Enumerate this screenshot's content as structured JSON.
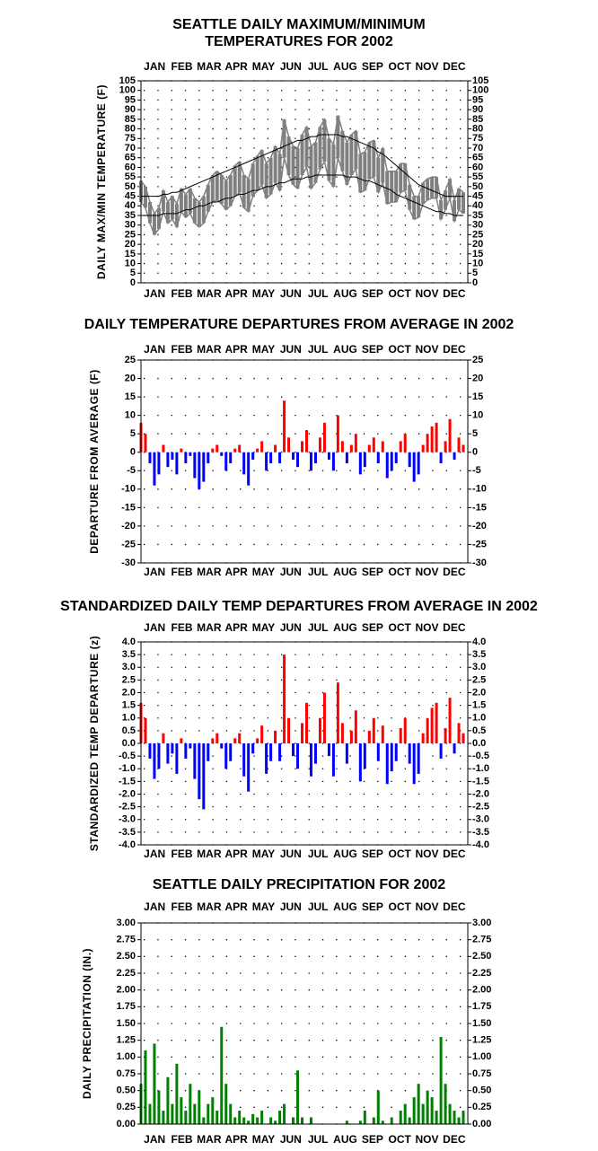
{
  "chart_data": [
    {
      "type": "range_line",
      "title": [
        "SEATTLE DAILY MAXIMUM/MINIMUM",
        "TEMPERATURES FOR 2002"
      ],
      "y_label": "DAILY MAX/MIN TEMPERATURE (F)",
      "months": [
        "JAN",
        "FEB",
        "MAR",
        "APR",
        "MAY",
        "JUN",
        "JUL",
        "AUG",
        "SEP",
        "OCT",
        "NOV",
        "DEC"
      ],
      "xlim": [
        1,
        366
      ],
      "x": [
        1,
        6,
        11,
        16,
        21,
        26,
        31,
        36,
        41,
        46,
        51,
        56,
        61,
        66,
        71,
        76,
        81,
        86,
        91,
        96,
        101,
        106,
        111,
        116,
        121,
        126,
        131,
        136,
        141,
        146,
        151,
        156,
        161,
        166,
        171,
        176,
        181,
        186,
        191,
        196,
        201,
        206,
        211,
        216,
        221,
        226,
        231,
        236,
        241,
        246,
        251,
        256,
        261,
        266,
        271,
        276,
        281,
        286,
        291,
        296,
        301,
        306,
        311,
        316,
        321,
        326,
        331,
        336,
        341,
        346,
        351,
        356,
        361
      ],
      "ylim": [
        0,
        105
      ],
      "yticks": [
        0,
        5,
        10,
        15,
        20,
        25,
        30,
        35,
        40,
        45,
        50,
        55,
        60,
        65,
        70,
        75,
        80,
        85,
        90,
        95,
        100,
        105
      ],
      "grid": true,
      "series": [
        {
          "name": "Daily maximum",
          "color": "#808080",
          "values": [
            53,
            50,
            42,
            36,
            39,
            48,
            42,
            45,
            41,
            49,
            46,
            49,
            44,
            42,
            45,
            51,
            56,
            58,
            56,
            53,
            56,
            61,
            63,
            56,
            54,
            62,
            66,
            69,
            62,
            65,
            71,
            67,
            85,
            76,
            71,
            70,
            77,
            81,
            71,
            73,
            81,
            85,
            75,
            72,
            87,
            79,
            73,
            77,
            79,
            67,
            68,
            73,
            74,
            65,
            70,
            58,
            58,
            58,
            62,
            62,
            51,
            45,
            45,
            52,
            54,
            55,
            55,
            43,
            48,
            54,
            43,
            49,
            47
          ]
        },
        {
          "name": "Daily minimum",
          "color": "#808080",
          "values": [
            42,
            39,
            31,
            25,
            28,
            37,
            31,
            33,
            29,
            37,
            34,
            36,
            31,
            29,
            31,
            37,
            42,
            43,
            41,
            38,
            40,
            45,
            47,
            39,
            37,
            45,
            48,
            51,
            44,
            46,
            52,
            48,
            65,
            56,
            51,
            49,
            56,
            60,
            49,
            52,
            59,
            63,
            53,
            50,
            65,
            58,
            51,
            56,
            59,
            47,
            48,
            54,
            55,
            47,
            52,
            41,
            42,
            42,
            47,
            48,
            38,
            33,
            34,
            41,
            43,
            44,
            44,
            33,
            38,
            44,
            32,
            38,
            36
          ]
        },
        {
          "name": "Average maximum",
          "color": "#000000",
          "values": [
            45,
            45,
            45,
            45,
            45,
            46,
            46,
            47,
            47,
            48,
            49,
            50,
            51,
            52,
            53,
            54,
            55,
            56,
            57,
            58,
            59,
            60,
            61,
            62,
            63,
            64,
            65,
            66,
            67,
            68,
            69,
            70,
            71,
            72,
            73,
            74,
            74,
            75,
            76,
            76,
            77,
            77,
            77,
            77,
            77,
            76,
            76,
            75,
            74,
            73,
            72,
            71,
            70,
            68,
            67,
            65,
            63,
            61,
            59,
            57,
            55,
            53,
            51,
            50,
            49,
            48,
            47,
            46,
            45,
            45,
            45,
            45,
            45
          ]
        },
        {
          "name": "Average minimum",
          "color": "#000000",
          "values": [
            35,
            35,
            35,
            35,
            35,
            36,
            36,
            36,
            36,
            37,
            38,
            38,
            39,
            40,
            40,
            41,
            42,
            42,
            43,
            44,
            44,
            45,
            46,
            46,
            47,
            48,
            48,
            49,
            50,
            50,
            51,
            52,
            52,
            53,
            54,
            54,
            54,
            55,
            55,
            56,
            56,
            56,
            56,
            56,
            56,
            56,
            55,
            55,
            55,
            54,
            53,
            53,
            52,
            51,
            50,
            49,
            48,
            46,
            45,
            44,
            43,
            42,
            41,
            40,
            39,
            38,
            37,
            37,
            36,
            36,
            35,
            35,
            35
          ]
        }
      ]
    },
    {
      "type": "bar",
      "title": [
        "DAILY TEMPERATURE DEPARTURES FROM AVERAGE IN 2002"
      ],
      "y_label": "DEPARTURE FROM AVERAGE (F)",
      "months": [
        "JAN",
        "FEB",
        "MAR",
        "APR",
        "MAY",
        "JUN",
        "JUL",
        "AUG",
        "SEP",
        "OCT",
        "NOV",
        "DEC"
      ],
      "xlim": [
        1,
        366
      ],
      "x": [
        1,
        6,
        11,
        16,
        21,
        26,
        31,
        36,
        41,
        46,
        51,
        56,
        61,
        66,
        71,
        76,
        81,
        86,
        91,
        96,
        101,
        106,
        111,
        116,
        121,
        126,
        131,
        136,
        141,
        146,
        151,
        156,
        161,
        166,
        171,
        176,
        181,
        186,
        191,
        196,
        201,
        206,
        211,
        216,
        221,
        226,
        231,
        236,
        241,
        246,
        251,
        256,
        261,
        266,
        271,
        276,
        281,
        286,
        291,
        296,
        301,
        306,
        311,
        316,
        321,
        326,
        331,
        336,
        341,
        346,
        351,
        356,
        361
      ],
      "ylim": [
        -30,
        25
      ],
      "yticks": [
        -30,
        -25,
        -20,
        -15,
        -10,
        -5,
        0,
        5,
        10,
        15,
        20,
        25
      ],
      "grid": true,
      "pos_color": "#ff0000",
      "neg_color": "#0000ff",
      "values": [
        8,
        5,
        -3,
        -9,
        -6,
        2,
        -4,
        -2,
        -6,
        1,
        -3,
        -1,
        -7,
        -10,
        -8,
        -3,
        1,
        2,
        -1,
        -5,
        -3,
        1,
        2,
        -6,
        -9,
        -2,
        1,
        3,
        -5,
        -3,
        2,
        -3,
        14,
        4,
        -2,
        -4,
        3,
        6,
        -5,
        -3,
        4,
        8,
        -2,
        -5,
        10,
        3,
        -3,
        2,
        5,
        -6,
        -4,
        2,
        4,
        -3,
        3,
        -7,
        -5,
        -3,
        3,
        5,
        -4,
        -8,
        -6,
        2,
        5,
        7,
        8,
        -3,
        3,
        9,
        -2,
        4,
        2
      ]
    },
    {
      "type": "bar",
      "title": [
        "STANDARDIZED DAILY TEMP DEPARTURES FROM AVERAGE IN 2002"
      ],
      "y_label": "STANDARDIZED TEMP DEPARTURE (z)",
      "months": [
        "JAN",
        "FEB",
        "MAR",
        "APR",
        "MAY",
        "JUN",
        "JUL",
        "AUG",
        "SEP",
        "OCT",
        "NOV",
        "DEC"
      ],
      "xlim": [
        1,
        366
      ],
      "x": [
        1,
        6,
        11,
        16,
        21,
        26,
        31,
        36,
        41,
        46,
        51,
        56,
        61,
        66,
        71,
        76,
        81,
        86,
        91,
        96,
        101,
        106,
        111,
        116,
        121,
        126,
        131,
        136,
        141,
        146,
        151,
        156,
        161,
        166,
        171,
        176,
        181,
        186,
        191,
        196,
        201,
        206,
        211,
        216,
        221,
        226,
        231,
        236,
        241,
        246,
        251,
        256,
        261,
        266,
        271,
        276,
        281,
        286,
        291,
        296,
        301,
        306,
        311,
        316,
        321,
        326,
        331,
        336,
        341,
        346,
        351,
        356,
        361
      ],
      "ylim": [
        -4,
        4
      ],
      "yticks": [
        {
          "value": -4,
          "label": "-4.0"
        },
        -3.5,
        {
          "value": -3,
          "label": "-3.0"
        },
        -2.5,
        {
          "value": -2,
          "label": "-2.0"
        },
        -1.5,
        {
          "value": -1,
          "label": "-1.0"
        },
        -0.5,
        {
          "value": 0,
          "label": "0.0"
        },
        0.5,
        {
          "value": 1,
          "label": "1.0"
        },
        1.5,
        {
          "value": 2,
          "label": "2.0"
        },
        2.5,
        {
          "value": 3,
          "label": "3.0"
        },
        3.5,
        {
          "value": 4,
          "label": "4.0"
        }
      ],
      "grid": true,
      "pos_color": "#ff0000",
      "neg_color": "#0000ff",
      "values": [
        1.6,
        1.0,
        -0.6,
        -1.4,
        -1.0,
        0.4,
        -0.8,
        -0.4,
        -1.2,
        0.2,
        -0.6,
        -0.2,
        -1.4,
        -2.2,
        -2.6,
        -0.7,
        0.2,
        0.4,
        -0.2,
        -1.0,
        -0.7,
        0.2,
        0.4,
        -1.3,
        -1.9,
        -0.4,
        0.2,
        0.7,
        -1.2,
        -0.7,
        0.5,
        -0.7,
        3.5,
        1.0,
        -0.5,
        -1.0,
        0.8,
        1.6,
        -1.3,
        -0.8,
        1.0,
        2.0,
        -0.5,
        -1.3,
        2.4,
        0.8,
        -0.8,
        0.5,
        1.3,
        -1.5,
        -1.0,
        0.5,
        1.0,
        -0.7,
        0.7,
        -1.6,
        -1.1,
        -0.7,
        0.6,
        1.0,
        -0.8,
        -1.6,
        -1.2,
        0.4,
        1.0,
        1.4,
        1.6,
        -0.6,
        0.6,
        1.8,
        -0.4,
        0.8,
        0.4
      ]
    },
    {
      "type": "bar",
      "title": [
        "SEATTLE DAILY PRECIPITATION FOR 2002"
      ],
      "y_label": "DAILY PRECIPITATION (IN.)",
      "months": [
        "JAN",
        "FEB",
        "MAR",
        "APR",
        "MAY",
        "JUN",
        "JUL",
        "AUG",
        "SEP",
        "OCT",
        "NOV",
        "DEC"
      ],
      "xlim": [
        1,
        366
      ],
      "x": [
        1,
        6,
        11,
        16,
        21,
        26,
        31,
        36,
        41,
        46,
        51,
        56,
        61,
        66,
        71,
        76,
        81,
        86,
        91,
        96,
        101,
        106,
        111,
        116,
        121,
        126,
        131,
        136,
        141,
        146,
        151,
        156,
        161,
        166,
        171,
        176,
        181,
        186,
        191,
        196,
        201,
        206,
        211,
        216,
        221,
        226,
        231,
        236,
        241,
        246,
        251,
        256,
        261,
        266,
        271,
        276,
        281,
        286,
        291,
        296,
        301,
        306,
        311,
        316,
        321,
        326,
        331,
        336,
        341,
        346,
        351,
        356,
        361
      ],
      "ylim": [
        0,
        3
      ],
      "yticks": [
        {
          "value": 0,
          "label": "0.00"
        },
        0.25,
        {
          "value": 0.5,
          "label": "0.50"
        },
        0.75,
        {
          "value": 1,
          "label": "1.00"
        },
        1.25,
        {
          "value": 1.5,
          "label": "1.50"
        },
        1.75,
        {
          "value": 2,
          "label": "2.00"
        },
        2.25,
        {
          "value": 2.5,
          "label": "2.50"
        },
        2.75,
        {
          "value": 3,
          "label": "3.00"
        }
      ],
      "grid": true,
      "color": "#008000",
      "values": [
        0.6,
        1.1,
        0.3,
        1.2,
        0.5,
        0.2,
        0.7,
        0.3,
        0.9,
        0.4,
        0.2,
        0.6,
        0.3,
        0.5,
        0.1,
        0.3,
        0.4,
        0.2,
        1.45,
        0.6,
        0.3,
        0.1,
        0.2,
        0.1,
        0.05,
        0.15,
        0.1,
        0.2,
        0,
        0.1,
        0.05,
        0.2,
        0.3,
        0,
        0.1,
        0.8,
        0.1,
        0,
        0.1,
        0,
        0,
        0,
        0,
        0,
        0,
        0,
        0.05,
        0,
        0,
        0.05,
        0.2,
        0,
        0.1,
        0.5,
        0.05,
        0,
        0.1,
        0,
        0.2,
        0.3,
        0.1,
        0.4,
        0.6,
        0.3,
        0.5,
        0.4,
        0.2,
        1.3,
        0.6,
        0.3,
        0.2,
        0.1,
        0.2
      ]
    }
  ]
}
